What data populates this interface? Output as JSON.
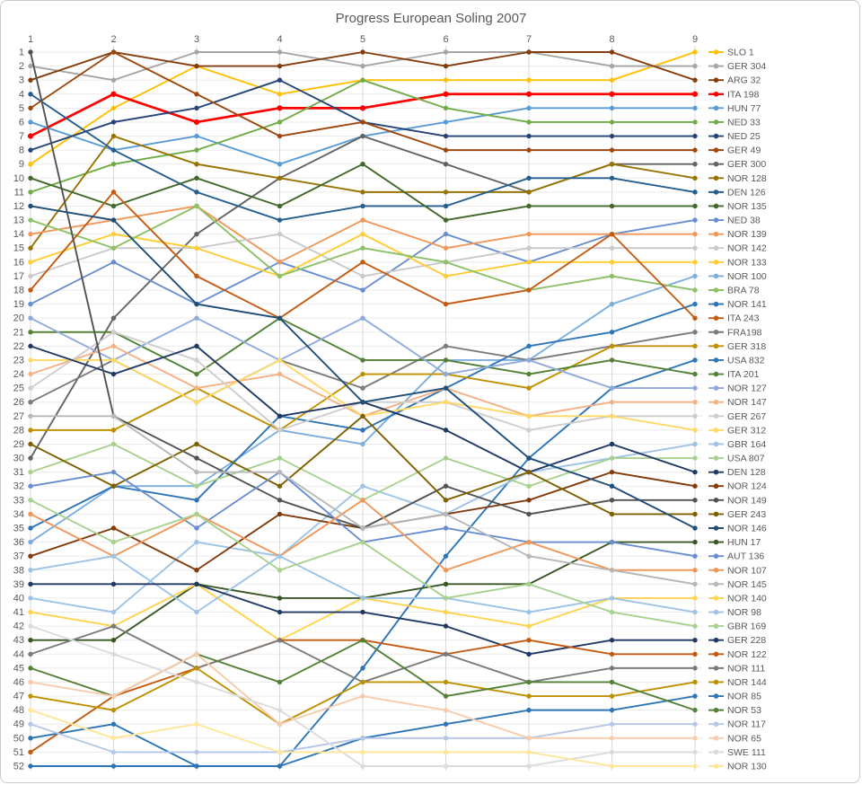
{
  "title": "Progress European Soling 2007",
  "colors": {
    "title_text": "#595959",
    "axis_text": "#595959",
    "grid_vertical": "#d9d9d9",
    "grid_horizontal": "#ebebeb",
    "frame": "#c9c9c9",
    "background": "#ffffff",
    "highlight_series": "#ff0000"
  },
  "chart_data": {
    "type": "line",
    "subtype": "bump-rank-chart",
    "title": "Progress European Soling 2007",
    "xlabel": "",
    "ylabel": "",
    "x_axis": {
      "position": "top",
      "ticks": [
        1,
        2,
        3,
        4,
        5,
        6,
        7,
        8,
        9
      ]
    },
    "y_axis": {
      "position": "left",
      "inverted": true,
      "range": [
        1,
        52
      ],
      "ticks": [
        1,
        2,
        3,
        4,
        5,
        6,
        7,
        8,
        9,
        10,
        11,
        12,
        13,
        14,
        15,
        16,
        17,
        18,
        19,
        20,
        21,
        22,
        23,
        24,
        25,
        26,
        27,
        28,
        29,
        30,
        31,
        32,
        33,
        34,
        35,
        36,
        37,
        38,
        39,
        40,
        41,
        42,
        43,
        44,
        45,
        46,
        47,
        48,
        49,
        50,
        51,
        52
      ]
    },
    "grid": true,
    "legend_position": "right",
    "marker": "circle",
    "series": [
      {
        "name": "SLO 1",
        "color": "#FFC000",
        "positions": [
          9,
          5,
          2,
          4,
          3,
          3,
          3,
          3,
          1
        ]
      },
      {
        "name": "GER 304",
        "color": "#A5A5A5",
        "positions": [
          2,
          3,
          1,
          1,
          2,
          1,
          1,
          2,
          2
        ]
      },
      {
        "name": "ARG 32",
        "color": "#843C0C",
        "positions": [
          3,
          1,
          2,
          2,
          1,
          2,
          1,
          1,
          3
        ]
      },
      {
        "name": "ITA 198",
        "color": "#FF0000",
        "positions": [
          7,
          4,
          6,
          5,
          5,
          4,
          4,
          4,
          4
        ],
        "emphasis": true
      },
      {
        "name": "HUN 77",
        "color": "#5B9BD5",
        "positions": [
          6,
          8,
          7,
          9,
          7,
          6,
          5,
          5,
          5
        ]
      },
      {
        "name": "NED 33",
        "color": "#70AD47",
        "positions": [
          11,
          9,
          8,
          6,
          3,
          5,
          6,
          6,
          6
        ]
      },
      {
        "name": "NED 25",
        "color": "#264478",
        "positions": [
          8,
          6,
          5,
          3,
          6,
          7,
          7,
          7,
          7
        ]
      },
      {
        "name": "GER 49",
        "color": "#9E480E",
        "positions": [
          5,
          1,
          4,
          7,
          6,
          8,
          8,
          8,
          8
        ]
      },
      {
        "name": "GER 300",
        "color": "#636363",
        "positions": [
          30,
          20,
          14,
          10,
          7,
          9,
          11,
          9,
          9
        ]
      },
      {
        "name": "NOR 128",
        "color": "#997300",
        "positions": [
          15,
          7,
          9,
          10,
          11,
          11,
          11,
          9,
          10
        ]
      },
      {
        "name": "DEN 126",
        "color": "#255E91",
        "positions": [
          4,
          8,
          11,
          13,
          12,
          12,
          10,
          10,
          11
        ]
      },
      {
        "name": "NOR 135",
        "color": "#43682B",
        "positions": [
          10,
          12,
          10,
          12,
          9,
          13,
          12,
          12,
          12
        ]
      },
      {
        "name": "NED 38",
        "color": "#698ED0",
        "positions": [
          19,
          16,
          19,
          16,
          18,
          14,
          16,
          14,
          13
        ]
      },
      {
        "name": "NOR 139",
        "color": "#F1975A",
        "positions": [
          14,
          13,
          12,
          16,
          13,
          15,
          14,
          14,
          14
        ]
      },
      {
        "name": "NOR 142",
        "color": "#C9C9C9",
        "positions": [
          17,
          15,
          15,
          14,
          17,
          16,
          15,
          15,
          15
        ]
      },
      {
        "name": "NOR 133",
        "color": "#FFCD33",
        "positions": [
          16,
          14,
          15,
          17,
          14,
          17,
          16,
          16,
          16
        ]
      },
      {
        "name": "NOR 100",
        "color": "#7CAFDD",
        "positions": [
          36,
          32,
          32,
          28,
          29,
          23,
          23,
          19,
          17
        ]
      },
      {
        "name": "BRA 78",
        "color": "#8CC168",
        "positions": [
          13,
          15,
          12,
          17,
          15,
          16,
          18,
          17,
          18
        ]
      },
      {
        "name": "NOR 141",
        "color": "#2E75B6",
        "positions": [
          35,
          32,
          33,
          27,
          28,
          25,
          22,
          21,
          19
        ]
      },
      {
        "name": "ITA 243",
        "color": "#C55A11",
        "positions": [
          18,
          11,
          17,
          20,
          16,
          19,
          18,
          14,
          20
        ]
      },
      {
        "name": "FRA198",
        "color": "#7B7B7B",
        "positions": [
          26,
          23,
          26,
          23,
          25,
          22,
          23,
          22,
          21
        ]
      },
      {
        "name": "GER 318",
        "color": "#BF9000",
        "positions": [
          28,
          28,
          25,
          28,
          24,
          24,
          25,
          22,
          22
        ]
      },
      {
        "name": "USA 832",
        "color": "#2E75B6",
        "positions": [
          52,
          52,
          52,
          52,
          45,
          37,
          30,
          25,
          23
        ]
      },
      {
        "name": "ITA 201",
        "color": "#538135",
        "positions": [
          21,
          21,
          24,
          20,
          23,
          23,
          24,
          23,
          24
        ]
      },
      {
        "name": "NOR 127",
        "color": "#8FAADC",
        "positions": [
          20,
          23,
          20,
          23,
          20,
          24,
          23,
          25,
          25
        ]
      },
      {
        "name": "NOR 147",
        "color": "#F4B183",
        "positions": [
          24,
          22,
          25,
          24,
          27,
          25,
          27,
          26,
          26
        ]
      },
      {
        "name": "GER 267",
        "color": "#CFCDCD",
        "positions": [
          25,
          21,
          23,
          28,
          26,
          26,
          28,
          27,
          27
        ]
      },
      {
        "name": "GER 312",
        "color": "#FFD966",
        "positions": [
          23,
          23,
          26,
          23,
          27,
          26,
          27,
          27,
          28
        ]
      },
      {
        "name": "GBR 164",
        "color": "#9DC3E6",
        "positions": [
          40,
          41,
          36,
          37,
          32,
          34,
          31,
          30,
          29
        ]
      },
      {
        "name": "USA 807",
        "color": "#A9D18E",
        "positions": [
          31,
          29,
          32,
          30,
          33,
          30,
          32,
          30,
          30
        ]
      },
      {
        "name": "DEN 128",
        "color": "#203864",
        "positions": [
          22,
          24,
          22,
          27,
          26,
          28,
          31,
          29,
          31
        ]
      },
      {
        "name": "NOR 124",
        "color": "#823B0B",
        "positions": [
          37,
          35,
          38,
          34,
          35,
          34,
          33,
          31,
          32
        ]
      },
      {
        "name": "NOR 149",
        "color": "#525252",
        "positions": [
          1,
          27,
          30,
          33,
          35,
          32,
          34,
          33,
          33
        ]
      },
      {
        "name": "GER 243",
        "color": "#7F6000",
        "positions": [
          29,
          32,
          29,
          32,
          27,
          33,
          31,
          34,
          34
        ]
      },
      {
        "name": "NOR 146",
        "color": "#1F4E79",
        "positions": [
          12,
          13,
          19,
          20,
          26,
          25,
          30,
          32,
          35
        ]
      },
      {
        "name": "HUN 17",
        "color": "#385723",
        "positions": [
          43,
          43,
          39,
          40,
          40,
          39,
          39,
          36,
          36
        ]
      },
      {
        "name": "AUT 136",
        "color": "#698ED0",
        "positions": [
          32,
          31,
          35,
          31,
          36,
          35,
          36,
          36,
          37
        ]
      },
      {
        "name": "NOR 107",
        "color": "#F1975A",
        "positions": [
          34,
          37,
          34,
          37,
          33,
          38,
          36,
          38,
          38
        ]
      },
      {
        "name": "NOR 145",
        "color": "#B7B7B7",
        "positions": [
          27,
          27,
          31,
          31,
          35,
          34,
          37,
          38,
          39
        ]
      },
      {
        "name": "NOR 140",
        "color": "#FFD34D",
        "positions": [
          41,
          42,
          39,
          43,
          40,
          41,
          42,
          40,
          40
        ]
      },
      {
        "name": "NOR 98",
        "color": "#9DC3E6",
        "positions": [
          38,
          37,
          41,
          37,
          40,
          40,
          41,
          40,
          41
        ]
      },
      {
        "name": "GBR 169",
        "color": "#A9D18E",
        "positions": [
          33,
          36,
          34,
          38,
          36,
          40,
          39,
          41,
          42
        ]
      },
      {
        "name": "GER 228",
        "color": "#203864",
        "positions": [
          39,
          39,
          39,
          41,
          41,
          42,
          44,
          43,
          43
        ]
      },
      {
        "name": "NOR 122",
        "color": "#C55A11",
        "positions": [
          51,
          47,
          45,
          43,
          43,
          44,
          43,
          44,
          44
        ]
      },
      {
        "name": "NOR 111",
        "color": "#7B7B7B",
        "positions": [
          44,
          42,
          45,
          43,
          46,
          44,
          46,
          45,
          45
        ]
      },
      {
        "name": "NOR 144",
        "color": "#BF9000",
        "positions": [
          47,
          48,
          45,
          49,
          46,
          46,
          47,
          47,
          46
        ]
      },
      {
        "name": "NOR 85",
        "color": "#2E75B6",
        "positions": [
          50,
          49,
          52,
          52,
          50,
          49,
          48,
          48,
          47
        ]
      },
      {
        "name": "NOR 53",
        "color": "#538135",
        "positions": [
          45,
          47,
          44,
          46,
          43,
          47,
          46,
          46,
          48
        ]
      },
      {
        "name": "NOR 117",
        "color": "#B4C7E7",
        "positions": [
          49,
          51,
          51,
          51,
          50,
          50,
          50,
          49,
          49
        ]
      },
      {
        "name": "NOR 65",
        "color": "#F8CBAD",
        "positions": [
          46,
          47,
          44,
          49,
          47,
          48,
          50,
          50,
          50
        ]
      },
      {
        "name": "SWE 111",
        "color": "#DBDBDB",
        "positions": [
          42,
          44,
          46,
          48,
          52,
          52,
          52,
          51,
          51
        ]
      },
      {
        "name": "NOR 130",
        "color": "#FFE699",
        "positions": [
          48,
          50,
          49,
          51,
          51,
          51,
          51,
          52,
          52
        ]
      }
    ]
  }
}
